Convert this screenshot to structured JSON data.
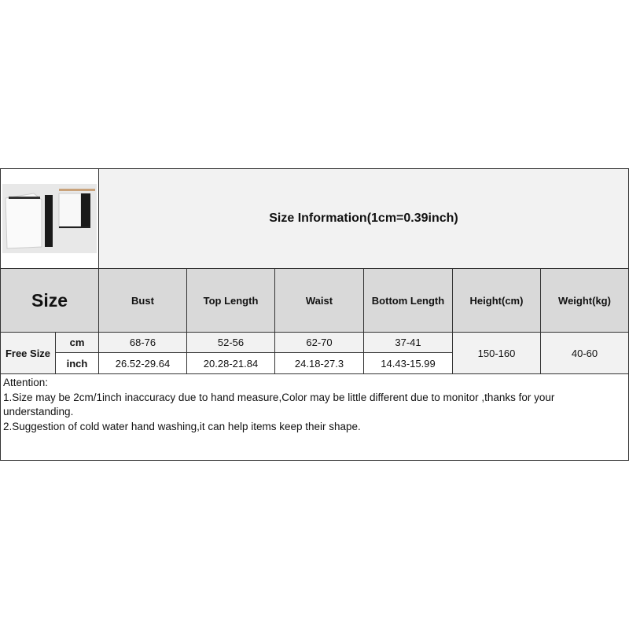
{
  "title": "Size Information(1cm=0.39inch)",
  "product_image": "white sweater, black pants, white skirt and black skirt on hangers",
  "headers": {
    "size": "Size",
    "columns": [
      "Bust",
      "Top Length",
      "Waist",
      "Bottom Length",
      "Height(cm)",
      "Weight(kg)"
    ]
  },
  "rows": {
    "size_label": "Free Size",
    "cm": {
      "unit": "cm",
      "values": [
        "68-76",
        "52-56",
        "62-70",
        "37-41"
      ]
    },
    "inch": {
      "unit": "inch",
      "values": [
        "26.52-29.64",
        "20.28-21.84",
        "24.18-27.3",
        "14.43-15.99"
      ]
    },
    "height": "150-160",
    "weight": "40-60"
  },
  "attention": {
    "heading": "Attention:",
    "lines": [
      "1.Size may be 2cm/1inch inaccuracy due to hand measure,Color may be little different due to monitor ,thanks for your understanding.",
      "2.Suggestion of cold water hand washing,it can help items keep their shape."
    ]
  }
}
